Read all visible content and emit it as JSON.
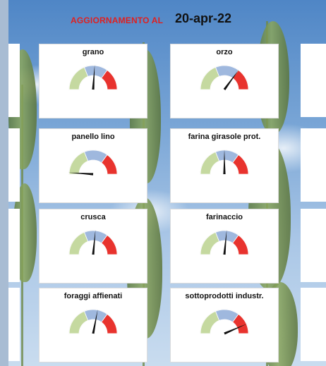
{
  "header": {
    "label": "AGGIORNAMENTO AL",
    "date": "20-apr-22"
  },
  "gauge_colors": {
    "green": "#c5d9a0",
    "blue": "#9fb8de",
    "red": "#e8332e",
    "needle": "#111111"
  },
  "gauges": [
    {
      "id": "grano",
      "title": "grano",
      "level": 0.52
    },
    {
      "id": "orzo",
      "title": "orzo",
      "level": 0.7
    },
    {
      "id": "panello-lino",
      "title": "panello lino",
      "level": 0.02
    },
    {
      "id": "farina-girasole",
      "title": "farina girasole prot.",
      "level": 0.5
    },
    {
      "id": "crusca",
      "title": "crusca",
      "level": 0.53
    },
    {
      "id": "farinaccio",
      "title": "farinaccio",
      "level": 0.53
    },
    {
      "id": "foraggi-affienati",
      "title": "foraggi affienati",
      "level": 0.56
    },
    {
      "id": "sottoprodotti-industr",
      "title": "sottoprodotti industr.",
      "level": 0.87
    }
  ]
}
